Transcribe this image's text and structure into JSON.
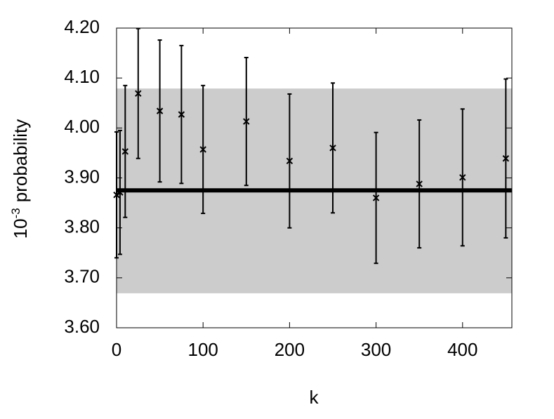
{
  "chart_data": {
    "type": "errorbar",
    "xlabel": "k",
    "ylabel": {
      "base": "10",
      "exponent": "-3",
      "text": "probability"
    },
    "x": [
      0,
      4,
      10,
      25,
      50,
      75,
      100,
      150,
      200,
      250,
      300,
      350,
      400,
      450
    ],
    "values": [
      3.866,
      3.871,
      3.953,
      4.069,
      4.034,
      4.027,
      3.957,
      4.013,
      3.934,
      3.96,
      3.86,
      3.888,
      3.901,
      3.939
    ],
    "errors": [
      0.126,
      0.124,
      0.132,
      0.13,
      0.142,
      0.138,
      0.128,
      0.128,
      0.134,
      0.13,
      0.131,
      0.128,
      0.137,
      0.159
    ],
    "band": [
      3.669,
      4.079
    ],
    "band_color": "#cccccc",
    "reference_line": 3.875,
    "color": "#000000",
    "xlim": [
      0,
      457
    ],
    "ylim": [
      3.6,
      4.2
    ],
    "xticks": [
      0,
      100,
      200,
      300,
      400
    ],
    "yticks": [
      {
        "value": 3.6,
        "label": "3.60"
      },
      {
        "value": 3.7,
        "label": "3.70"
      },
      {
        "value": 3.8,
        "label": "3.80"
      },
      {
        "value": 3.9,
        "label": "3.90"
      },
      {
        "value": 4.0,
        "label": "4.00"
      },
      {
        "value": 4.1,
        "label": "4.10"
      },
      {
        "value": 4.2,
        "label": "4.20"
      }
    ]
  }
}
